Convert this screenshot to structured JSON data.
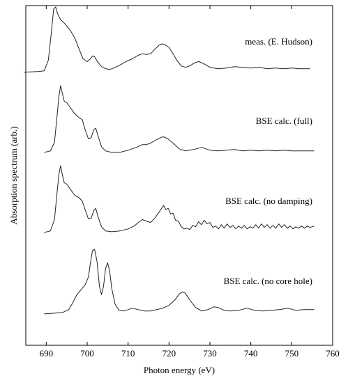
{
  "chart_data": {
    "type": "line",
    "xlabel": "Photon energy (eV)",
    "ylabel": "Absorption spectrum (arb.)",
    "xlim": [
      685,
      760
    ],
    "x_ticks": [
      690,
      700,
      710,
      720,
      730,
      740,
      750,
      760
    ],
    "grid": false,
    "stacked_offset_spectra": true,
    "y_ticks_shown": false,
    "line_color": "#222222",
    "series": [
      {
        "name": "meas. (E. Hudson)",
        "offset": 3,
        "points": [
          [
            684.5,
            0.08
          ],
          [
            688,
            0.09
          ],
          [
            689.5,
            0.1
          ],
          [
            690.5,
            0.25
          ],
          [
            691.2,
            0.62
          ],
          [
            691.8,
            0.97
          ],
          [
            692.3,
            1.0
          ],
          [
            692.8,
            0.9
          ],
          [
            693.5,
            0.82
          ],
          [
            694.3,
            0.78
          ],
          [
            695,
            0.73
          ],
          [
            696,
            0.66
          ],
          [
            697,
            0.56
          ],
          [
            698,
            0.41
          ],
          [
            699,
            0.27
          ],
          [
            700,
            0.23
          ],
          [
            700.8,
            0.27
          ],
          [
            701.3,
            0.31
          ],
          [
            701.8,
            0.3
          ],
          [
            702.5,
            0.23
          ],
          [
            703.5,
            0.16
          ],
          [
            704.5,
            0.13
          ],
          [
            705.5,
            0.12
          ],
          [
            706.5,
            0.14
          ],
          [
            708,
            0.18
          ],
          [
            709.5,
            0.23
          ],
          [
            711,
            0.27
          ],
          [
            712.5,
            0.32
          ],
          [
            713.5,
            0.34
          ],
          [
            714.5,
            0.33
          ],
          [
            715.5,
            0.34
          ],
          [
            716.5,
            0.4
          ],
          [
            717.5,
            0.46
          ],
          [
            718.3,
            0.48
          ],
          [
            719,
            0.47
          ],
          [
            720,
            0.43
          ],
          [
            721,
            0.34
          ],
          [
            722,
            0.24
          ],
          [
            723,
            0.17
          ],
          [
            724,
            0.15
          ],
          [
            725,
            0.17
          ],
          [
            726.5,
            0.22
          ],
          [
            727.3,
            0.23
          ],
          [
            728.5,
            0.2
          ],
          [
            730,
            0.15
          ],
          [
            732,
            0.13
          ],
          [
            734,
            0.14
          ],
          [
            736,
            0.16
          ],
          [
            738,
            0.15
          ],
          [
            740,
            0.14
          ],
          [
            742,
            0.15
          ],
          [
            744,
            0.13
          ],
          [
            746,
            0.14
          ],
          [
            748,
            0.13
          ],
          [
            750,
            0.14
          ],
          [
            752,
            0.13
          ],
          [
            754.5,
            0.13
          ]
        ]
      },
      {
        "name": "BSE calc. (full)",
        "offset": 2,
        "points": [
          [
            689.5,
            0.06
          ],
          [
            691,
            0.08
          ],
          [
            692,
            0.2
          ],
          [
            692.6,
            0.55
          ],
          [
            693.1,
            0.85
          ],
          [
            693.5,
            1.0
          ],
          [
            693.9,
            0.9
          ],
          [
            694.4,
            0.78
          ],
          [
            695,
            0.76
          ],
          [
            696,
            0.68
          ],
          [
            697,
            0.6
          ],
          [
            698,
            0.55
          ],
          [
            698.8,
            0.52
          ],
          [
            699.5,
            0.38
          ],
          [
            700.3,
            0.25
          ],
          [
            701,
            0.27
          ],
          [
            701.6,
            0.38
          ],
          [
            702.1,
            0.4
          ],
          [
            702.6,
            0.3
          ],
          [
            703.5,
            0.14
          ],
          [
            704.5,
            0.08
          ],
          [
            706,
            0.06
          ],
          [
            708,
            0.06
          ],
          [
            710,
            0.09
          ],
          [
            712,
            0.13
          ],
          [
            713.5,
            0.17
          ],
          [
            714.5,
            0.17
          ],
          [
            715.5,
            0.19
          ],
          [
            717,
            0.24
          ],
          [
            718.5,
            0.28
          ],
          [
            719.5,
            0.26
          ],
          [
            721,
            0.19
          ],
          [
            722.5,
            0.11
          ],
          [
            724,
            0.08
          ],
          [
            726,
            0.1
          ],
          [
            728,
            0.13
          ],
          [
            730,
            0.09
          ],
          [
            732,
            0.08
          ],
          [
            734,
            0.09
          ],
          [
            736,
            0.1
          ],
          [
            738,
            0.08
          ],
          [
            740,
            0.09
          ],
          [
            742,
            0.08
          ],
          [
            744,
            0.09
          ],
          [
            746,
            0.08
          ],
          [
            748,
            0.09
          ],
          [
            750,
            0.08
          ],
          [
            752,
            0.08
          ],
          [
            755.5,
            0.08
          ]
        ]
      },
      {
        "name": "BSE calc. (no damping)",
        "offset": 1,
        "points": [
          [
            689.5,
            0.06
          ],
          [
            691,
            0.08
          ],
          [
            692,
            0.24
          ],
          [
            692.6,
            0.6
          ],
          [
            693.1,
            0.88
          ],
          [
            693.5,
            1.0
          ],
          [
            693.9,
            0.88
          ],
          [
            694.4,
            0.76
          ],
          [
            695,
            0.74
          ],
          [
            696,
            0.66
          ],
          [
            697,
            0.58
          ],
          [
            698,
            0.55
          ],
          [
            698.8,
            0.5
          ],
          [
            699.5,
            0.38
          ],
          [
            700.3,
            0.25
          ],
          [
            701,
            0.26
          ],
          [
            701.6,
            0.37
          ],
          [
            702.1,
            0.4
          ],
          [
            702.6,
            0.29
          ],
          [
            703.5,
            0.14
          ],
          [
            704.5,
            0.08
          ],
          [
            706,
            0.07
          ],
          [
            708,
            0.08
          ],
          [
            710,
            0.11
          ],
          [
            711.5,
            0.15
          ],
          [
            712.5,
            0.2
          ],
          [
            713.5,
            0.24
          ],
          [
            714.5,
            0.22
          ],
          [
            715.5,
            0.2
          ],
          [
            716.5,
            0.26
          ],
          [
            717.5,
            0.34
          ],
          [
            718.2,
            0.4
          ],
          [
            718.7,
            0.44
          ],
          [
            719.2,
            0.38
          ],
          [
            719.8,
            0.4
          ],
          [
            720.4,
            0.32
          ],
          [
            721,
            0.33
          ],
          [
            721.6,
            0.23
          ],
          [
            722.3,
            0.22
          ],
          [
            723,
            0.14
          ],
          [
            723.7,
            0.11
          ],
          [
            724.4,
            0.12
          ],
          [
            725.1,
            0.1
          ],
          [
            725.8,
            0.16
          ],
          [
            726.5,
            0.14
          ],
          [
            727.2,
            0.21
          ],
          [
            727.9,
            0.17
          ],
          [
            728.6,
            0.23
          ],
          [
            729.3,
            0.18
          ],
          [
            730,
            0.2
          ],
          [
            730.7,
            0.13
          ],
          [
            731.4,
            0.15
          ],
          [
            732.1,
            0.11
          ],
          [
            732.8,
            0.17
          ],
          [
            733.5,
            0.12
          ],
          [
            734.2,
            0.18
          ],
          [
            734.9,
            0.13
          ],
          [
            735.6,
            0.16
          ],
          [
            736.3,
            0.11
          ],
          [
            737,
            0.15
          ],
          [
            737.7,
            0.12
          ],
          [
            738.4,
            0.16
          ],
          [
            739.1,
            0.11
          ],
          [
            739.8,
            0.14
          ],
          [
            740.5,
            0.12
          ],
          [
            741.2,
            0.17
          ],
          [
            741.9,
            0.12
          ],
          [
            742.6,
            0.18
          ],
          [
            743.3,
            0.13
          ],
          [
            744,
            0.17
          ],
          [
            744.7,
            0.12
          ],
          [
            745.4,
            0.16
          ],
          [
            746.1,
            0.12
          ],
          [
            746.8,
            0.18
          ],
          [
            747.5,
            0.13
          ],
          [
            748.2,
            0.17
          ],
          [
            748.9,
            0.12
          ],
          [
            749.6,
            0.15
          ],
          [
            750.3,
            0.11
          ],
          [
            751,
            0.14
          ],
          [
            751.7,
            0.12
          ],
          [
            752.4,
            0.15
          ],
          [
            753.1,
            0.12
          ],
          [
            753.8,
            0.15
          ],
          [
            754.5,
            0.13
          ],
          [
            755.5,
            0.15
          ]
        ]
      },
      {
        "name": "BSE calc. (no core hole)",
        "offset": 0,
        "points": [
          [
            689.5,
            0.06
          ],
          [
            692,
            0.07
          ],
          [
            694,
            0.08
          ],
          [
            695.5,
            0.12
          ],
          [
            696.5,
            0.22
          ],
          [
            697.5,
            0.33
          ],
          [
            698.5,
            0.4
          ],
          [
            699.5,
            0.47
          ],
          [
            700.3,
            0.58
          ],
          [
            700.8,
            0.78
          ],
          [
            701.3,
            0.95
          ],
          [
            701.8,
            0.97
          ],
          [
            702.4,
            0.8
          ],
          [
            703,
            0.45
          ],
          [
            703.5,
            0.33
          ],
          [
            704,
            0.45
          ],
          [
            704.5,
            0.7
          ],
          [
            705,
            0.78
          ],
          [
            705.5,
            0.66
          ],
          [
            706,
            0.42
          ],
          [
            706.8,
            0.2
          ],
          [
            707.8,
            0.11
          ],
          [
            709,
            0.1
          ],
          [
            710,
            0.12
          ],
          [
            711,
            0.14
          ],
          [
            712.5,
            0.12
          ],
          [
            714,
            0.1
          ],
          [
            715.5,
            0.1
          ],
          [
            717,
            0.12
          ],
          [
            718.5,
            0.14
          ],
          [
            720,
            0.18
          ],
          [
            721.5,
            0.26
          ],
          [
            722.5,
            0.34
          ],
          [
            723.3,
            0.37
          ],
          [
            724,
            0.35
          ],
          [
            725,
            0.26
          ],
          [
            726.5,
            0.15
          ],
          [
            728,
            0.1
          ],
          [
            729.5,
            0.12
          ],
          [
            731,
            0.16
          ],
          [
            732,
            0.15
          ],
          [
            733.5,
            0.11
          ],
          [
            735,
            0.1
          ],
          [
            737,
            0.11
          ],
          [
            739,
            0.14
          ],
          [
            741,
            0.11
          ],
          [
            743,
            0.1
          ],
          [
            745,
            0.11
          ],
          [
            747,
            0.12
          ],
          [
            749,
            0.14
          ],
          [
            751,
            0.11
          ],
          [
            753,
            0.12
          ],
          [
            755.5,
            0.12
          ]
        ]
      }
    ]
  }
}
